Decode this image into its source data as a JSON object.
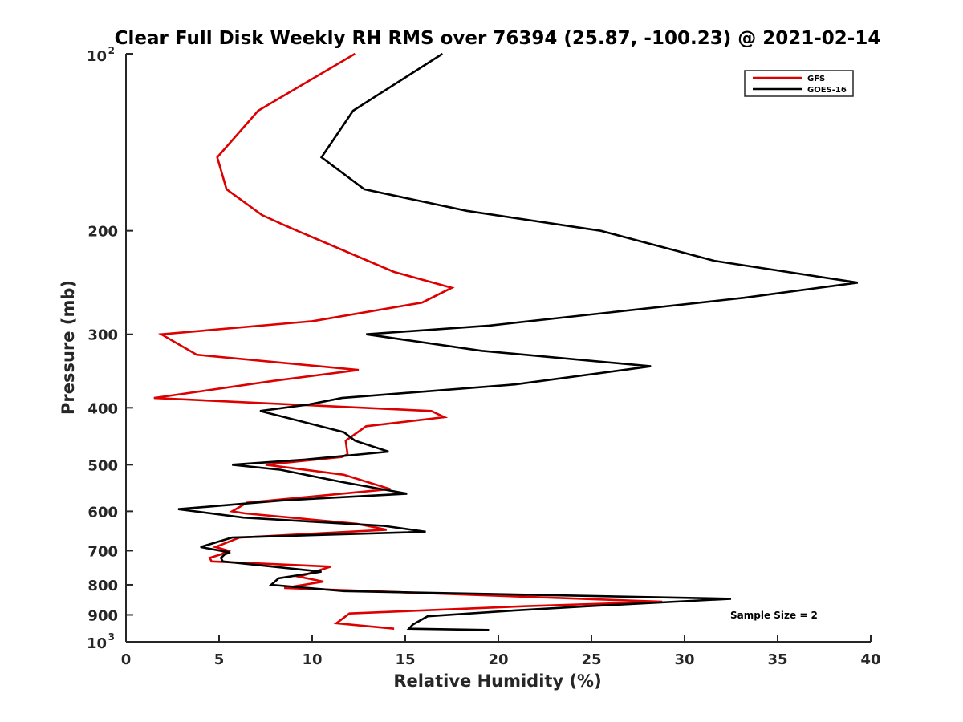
{
  "chart_data": {
    "type": "line",
    "title": "Clear Full Disk Weekly RH RMS over 76394 (25.87, -100.23) @ 2021-02-14",
    "xlabel": "Relative Humidity (%)",
    "ylabel": "Pressure (mb)",
    "xlim": [
      0,
      40
    ],
    "ylim": [
      100,
      1000
    ],
    "y_scale": "log",
    "y_reversed": true,
    "grid": false,
    "legend_position": "top-right",
    "x_ticks": [
      "0",
      "5",
      "10",
      "15",
      "20",
      "25",
      "30",
      "35",
      "40"
    ],
    "y_ticks": [
      {
        "value": 100,
        "base": "10",
        "exp": "2"
      },
      {
        "value": 200,
        "label": "200"
      },
      {
        "value": 300,
        "label": "300"
      },
      {
        "value": 400,
        "label": "400"
      },
      {
        "value": 500,
        "label": "500"
      },
      {
        "value": 600,
        "label": "600"
      },
      {
        "value": 700,
        "label": "700"
      },
      {
        "value": 800,
        "label": "800"
      },
      {
        "value": 900,
        "label": "900"
      },
      {
        "value": 1000,
        "base": "10",
        "exp": "3"
      }
    ],
    "series": [
      {
        "name": "GFS",
        "color": "#dd0000",
        "points": [
          [
            12.3,
            100
          ],
          [
            7.1,
            125
          ],
          [
            4.9,
            150
          ],
          [
            5.4,
            170
          ],
          [
            7.3,
            188
          ],
          [
            8.4,
            195
          ],
          [
            9.2,
            200
          ],
          [
            14.4,
            235
          ],
          [
            17.5,
            250
          ],
          [
            15.9,
            265
          ],
          [
            10.0,
            285
          ],
          [
            1.9,
            300
          ],
          [
            3.8,
            325
          ],
          [
            12.5,
            345
          ],
          [
            7.9,
            360
          ],
          [
            1.5,
            385
          ],
          [
            16.4,
            405
          ],
          [
            17.1,
            415
          ],
          [
            12.9,
            430
          ],
          [
            11.8,
            455
          ],
          [
            11.9,
            480
          ],
          [
            11.6,
            485
          ],
          [
            7.5,
            500
          ],
          [
            11.7,
            520
          ],
          [
            14.2,
            550
          ],
          [
            6.5,
            580
          ],
          [
            5.7,
            600
          ],
          [
            6.4,
            605
          ],
          [
            12.4,
            630
          ],
          [
            14.0,
            645
          ],
          [
            6.1,
            665
          ],
          [
            4.8,
            690
          ],
          [
            5.5,
            700
          ],
          [
            5.1,
            710
          ],
          [
            4.5,
            720
          ],
          [
            4.6,
            730
          ],
          [
            11.0,
            745
          ],
          [
            9.3,
            775
          ],
          [
            10.6,
            790
          ],
          [
            8.5,
            810
          ],
          [
            28.8,
            855
          ],
          [
            21.4,
            870
          ],
          [
            12.0,
            895
          ],
          [
            11.3,
            930
          ],
          [
            14.4,
            950
          ]
        ]
      },
      {
        "name": "GOES-16",
        "color": "#000000",
        "points": [
          [
            17.0,
            100
          ],
          [
            12.2,
            125
          ],
          [
            10.5,
            150
          ],
          [
            12.8,
            170
          ],
          [
            18.3,
            185
          ],
          [
            25.5,
            200
          ],
          [
            31.6,
            225
          ],
          [
            39.3,
            245
          ],
          [
            33.2,
            260
          ],
          [
            19.5,
            290
          ],
          [
            12.9,
            300
          ],
          [
            19.1,
            320
          ],
          [
            28.2,
            340
          ],
          [
            20.9,
            365
          ],
          [
            11.6,
            385
          ],
          [
            9.8,
            395
          ],
          [
            7.2,
            405
          ],
          [
            11.7,
            440
          ],
          [
            12.3,
            455
          ],
          [
            14.1,
            475
          ],
          [
            9.6,
            490
          ],
          [
            5.7,
            500
          ],
          [
            8.3,
            510
          ],
          [
            11.6,
            535
          ],
          [
            15.1,
            560
          ],
          [
            8.4,
            575
          ],
          [
            2.8,
            595
          ],
          [
            6.3,
            615
          ],
          [
            13.8,
            635
          ],
          [
            16.1,
            650
          ],
          [
            5.7,
            665
          ],
          [
            4.0,
            690
          ],
          [
            5.6,
            705
          ],
          [
            5.3,
            710
          ],
          [
            5.1,
            720
          ],
          [
            5.2,
            730
          ],
          [
            10.5,
            760
          ],
          [
            8.2,
            780
          ],
          [
            7.8,
            800
          ],
          [
            11.7,
            820
          ],
          [
            32.5,
            845
          ],
          [
            24.8,
            870
          ],
          [
            20.8,
            885
          ],
          [
            16.2,
            905
          ],
          [
            15.4,
            935
          ],
          [
            15.2,
            950
          ],
          [
            19.5,
            955
          ]
        ]
      }
    ],
    "annotation": "Sample Size = 2"
  }
}
